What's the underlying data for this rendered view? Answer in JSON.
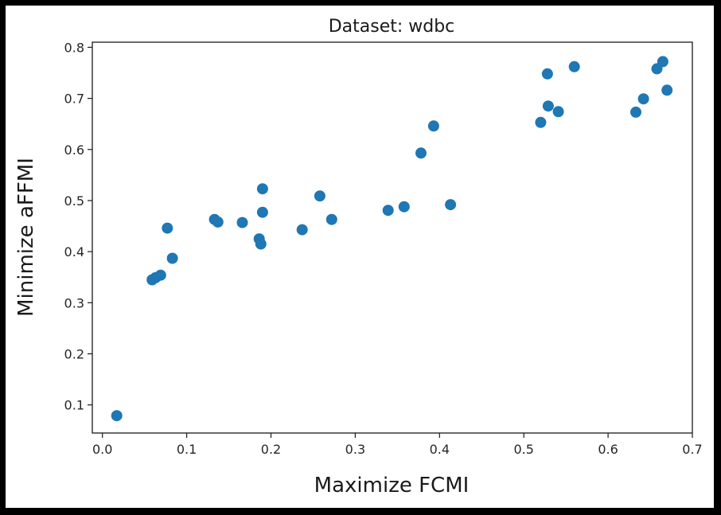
{
  "chart_data": {
    "type": "scatter",
    "title": "Dataset: wdbc",
    "xlabel": "Maximize FCMI",
    "ylabel": "Minimize aFFMI",
    "xlim": [
      -0.012,
      0.7
    ],
    "ylim": [
      0.045,
      0.81
    ],
    "xticks": [
      0.0,
      0.1,
      0.2,
      0.3,
      0.4,
      0.5,
      0.6,
      0.7
    ],
    "xtick_labels": [
      "0.0",
      "0.1",
      "0.2",
      "0.3",
      "0.4",
      "0.5",
      "0.6",
      "0.7"
    ],
    "yticks": [
      0.1,
      0.2,
      0.3,
      0.4,
      0.5,
      0.6,
      0.7,
      0.8
    ],
    "ytick_labels": [
      "0.1",
      "0.2",
      "0.3",
      "0.4",
      "0.5",
      "0.6",
      "0.7",
      "0.8"
    ],
    "grid": false,
    "marker_color": "#1f77b4",
    "points": [
      {
        "x": 0.017,
        "y": 0.079
      },
      {
        "x": 0.059,
        "y": 0.345
      },
      {
        "x": 0.063,
        "y": 0.349
      },
      {
        "x": 0.069,
        "y": 0.354
      },
      {
        "x": 0.077,
        "y": 0.446
      },
      {
        "x": 0.083,
        "y": 0.387
      },
      {
        "x": 0.133,
        "y": 0.463
      },
      {
        "x": 0.137,
        "y": 0.458
      },
      {
        "x": 0.166,
        "y": 0.457
      },
      {
        "x": 0.186,
        "y": 0.425
      },
      {
        "x": 0.188,
        "y": 0.415
      },
      {
        "x": 0.19,
        "y": 0.477
      },
      {
        "x": 0.19,
        "y": 0.523
      },
      {
        "x": 0.237,
        "y": 0.443
      },
      {
        "x": 0.258,
        "y": 0.509
      },
      {
        "x": 0.272,
        "y": 0.463
      },
      {
        "x": 0.339,
        "y": 0.481
      },
      {
        "x": 0.358,
        "y": 0.488
      },
      {
        "x": 0.378,
        "y": 0.593
      },
      {
        "x": 0.393,
        "y": 0.646
      },
      {
        "x": 0.413,
        "y": 0.492
      },
      {
        "x": 0.52,
        "y": 0.653
      },
      {
        "x": 0.528,
        "y": 0.748
      },
      {
        "x": 0.529,
        "y": 0.685
      },
      {
        "x": 0.541,
        "y": 0.674
      },
      {
        "x": 0.56,
        "y": 0.762
      },
      {
        "x": 0.633,
        "y": 0.673
      },
      {
        "x": 0.642,
        "y": 0.699
      },
      {
        "x": 0.658,
        "y": 0.758
      },
      {
        "x": 0.665,
        "y": 0.772
      },
      {
        "x": 0.67,
        "y": 0.716
      }
    ]
  }
}
